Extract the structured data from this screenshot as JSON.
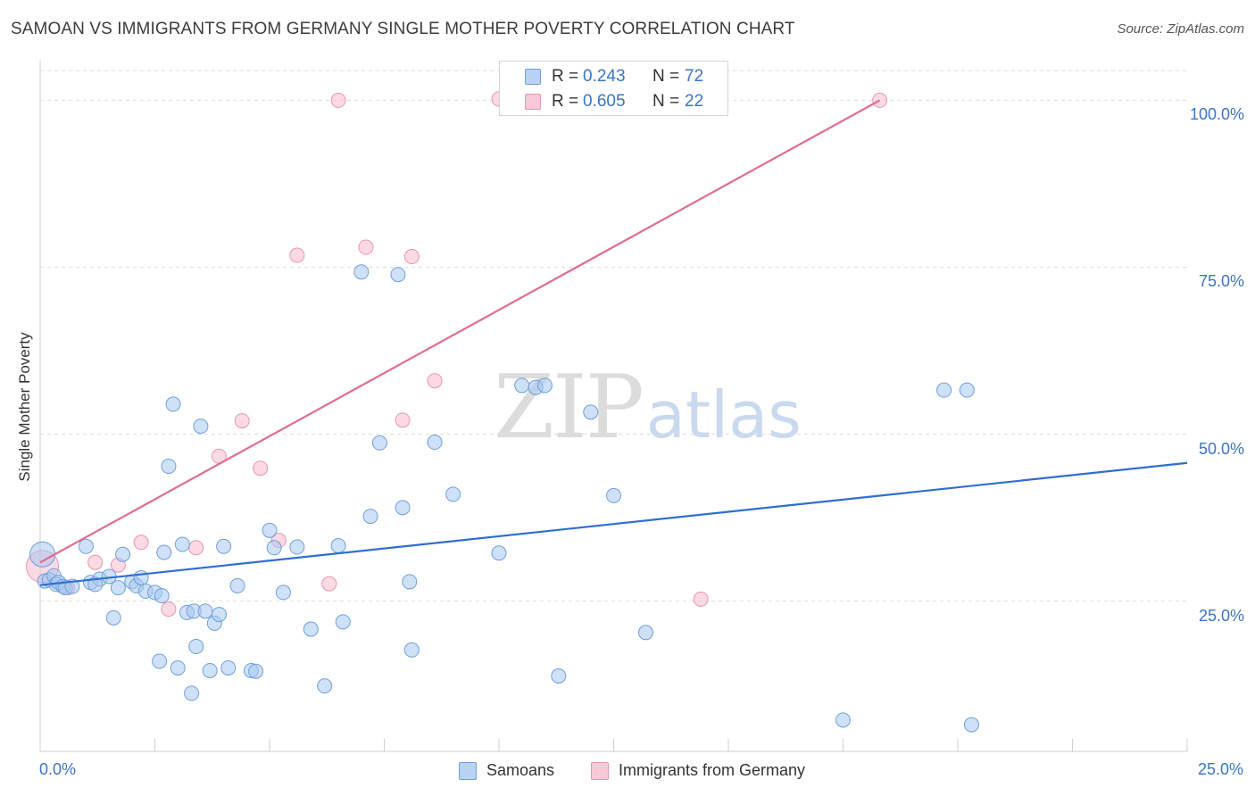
{
  "header": {
    "title": "SAMOAN VS IMMIGRANTS FROM GERMANY SINGLE MOTHER POVERTY CORRELATION CHART",
    "source": "Source: ZipAtlas.com"
  },
  "watermark": {
    "part1": "ZIP",
    "part2": "atlas"
  },
  "legend_stats": [
    {
      "r_label": "R =",
      "r_value": "0.243",
      "n_label": "N =",
      "n_value": "72"
    },
    {
      "r_label": "R =",
      "r_value": "0.605",
      "n_label": "N =",
      "n_value": "22"
    }
  ],
  "bottom_legend": [
    "Samoans",
    "Immigrants from Germany"
  ],
  "colors": {
    "samoans_fill": "#a8c8f0",
    "samoans_stroke": "#6f9fdb",
    "samoans_line": "#2f6fcf",
    "germany_fill": "#f7bccd",
    "germany_stroke": "#ea94ae",
    "germany_line": "#e06c92",
    "axis_text": "#3a74c8",
    "grid": "#dddddd"
  },
  "chart_data": {
    "type": "scatter",
    "title": "SAMOAN VS IMMIGRANTS FROM GERMANY SINGLE MOTHER POVERTY CORRELATION CHART",
    "xlabel": "",
    "ylabel": "Single Mother Poverty",
    "x_tick_labels": [
      "0.0%",
      "25.0%"
    ],
    "y_tick_labels": [
      "25.0%",
      "50.0%",
      "75.0%",
      "100.0%"
    ],
    "xlim": [
      0,
      25
    ],
    "ylim": [
      2.5,
      105
    ],
    "grid": true,
    "legend_position": "top-center",
    "series": [
      {
        "name": "Samoans",
        "r": 0.243,
        "n": 72,
        "trend": {
          "x": [
            0,
            25
          ],
          "y": [
            27.4,
            45.7
          ]
        },
        "points": [
          [
            0.05,
            32.0
          ],
          [
            0.1,
            28.0
          ],
          [
            0.2,
            28.2
          ],
          [
            0.3,
            28.8
          ],
          [
            0.35,
            27.5
          ],
          [
            0.4,
            27.8
          ],
          [
            0.5,
            27.2
          ],
          [
            0.55,
            27.0
          ],
          [
            1.0,
            33.2
          ],
          [
            1.1,
            27.8
          ],
          [
            1.3,
            28.3
          ],
          [
            1.5,
            28.7
          ],
          [
            1.6,
            22.5
          ],
          [
            1.7,
            27.0
          ],
          [
            1.8,
            32.0
          ],
          [
            2.0,
            27.9
          ],
          [
            2.1,
            27.3
          ],
          [
            2.2,
            28.5
          ],
          [
            2.3,
            26.5
          ],
          [
            2.5,
            26.3
          ],
          [
            2.6,
            16.0
          ],
          [
            2.65,
            25.8
          ],
          [
            2.7,
            32.3
          ],
          [
            2.8,
            45.2
          ],
          [
            2.9,
            54.5
          ],
          [
            3.0,
            15.0
          ],
          [
            3.1,
            33.5
          ],
          [
            3.2,
            23.3
          ],
          [
            3.3,
            11.2
          ],
          [
            3.35,
            23.5
          ],
          [
            3.4,
            18.2
          ],
          [
            3.5,
            51.2
          ],
          [
            3.6,
            23.5
          ],
          [
            3.7,
            14.6
          ],
          [
            3.8,
            21.7
          ],
          [
            3.9,
            23.0
          ],
          [
            4.0,
            33.2
          ],
          [
            4.1,
            15.0
          ],
          [
            4.3,
            27.3
          ],
          [
            4.6,
            14.6
          ],
          [
            4.7,
            14.5
          ],
          [
            5.0,
            35.6
          ],
          [
            5.1,
            33.0
          ],
          [
            5.3,
            26.3
          ],
          [
            5.6,
            33.1
          ],
          [
            5.9,
            20.8
          ],
          [
            6.2,
            12.3
          ],
          [
            6.5,
            33.3
          ],
          [
            6.6,
            21.9
          ],
          [
            7.0,
            74.3
          ],
          [
            7.2,
            37.7
          ],
          [
            7.4,
            48.7
          ],
          [
            7.8,
            73.9
          ],
          [
            7.9,
            39.0
          ],
          [
            8.1,
            17.7
          ],
          [
            8.05,
            27.9
          ],
          [
            8.6,
            48.8
          ],
          [
            9.0,
            41.0
          ],
          [
            10.0,
            32.2
          ],
          [
            10.5,
            57.3
          ],
          [
            10.8,
            57.0
          ],
          [
            11.0,
            57.3
          ],
          [
            11.3,
            13.8
          ],
          [
            12.0,
            53.3
          ],
          [
            12.5,
            40.8
          ],
          [
            13.2,
            20.3
          ],
          [
            17.5,
            7.2
          ],
          [
            19.7,
            56.6
          ],
          [
            20.2,
            56.6
          ],
          [
            20.3,
            6.5
          ],
          [
            0.7,
            27.2
          ],
          [
            1.2,
            27.5
          ]
        ]
      },
      {
        "name": "Immigrants from Germany",
        "r": 0.605,
        "n": 22,
        "trend": {
          "x": [
            0,
            18.3
          ],
          "y": [
            30.8,
            100.0
          ]
        },
        "points": [
          [
            0.05,
            30.2
          ],
          [
            0.6,
            27.0
          ],
          [
            1.2,
            30.8
          ],
          [
            1.7,
            30.4
          ],
          [
            2.2,
            33.8
          ],
          [
            2.8,
            23.8
          ],
          [
            3.4,
            33.0
          ],
          [
            3.9,
            46.7
          ],
          [
            4.4,
            52.0
          ],
          [
            4.8,
            44.9
          ],
          [
            5.2,
            34.1
          ],
          [
            5.6,
            76.8
          ],
          [
            6.3,
            27.6
          ],
          [
            6.5,
            100.0
          ],
          [
            7.1,
            78.0
          ],
          [
            7.9,
            52.1
          ],
          [
            8.1,
            76.6
          ],
          [
            8.6,
            58.0
          ],
          [
            10.0,
            100.2
          ],
          [
            10.3,
            100.1
          ],
          [
            14.4,
            25.3
          ],
          [
            18.3,
            100.0
          ]
        ]
      }
    ]
  }
}
